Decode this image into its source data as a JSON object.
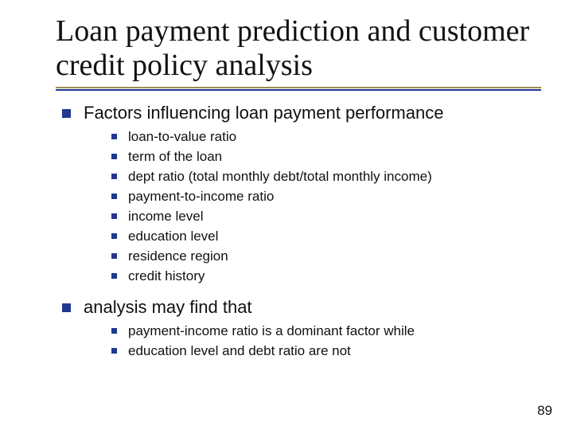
{
  "colors": {
    "bullet": "#203890",
    "rule_top": "#a08c52",
    "rule_bottom": "#203890",
    "text": "#111111",
    "background": "#ffffff"
  },
  "typography": {
    "title_font": "Times New Roman",
    "title_size_pt": 38,
    "body_font": "Verdana",
    "l1_size_pt": 22,
    "l2_size_pt": 17
  },
  "title": "Loan payment prediction and customer credit policy analysis",
  "sections": [
    {
      "heading": "Factors influencing loan payment performance",
      "items": [
        "loan-to-value ratio",
        "term of the loan",
        "dept ratio (total monthly debt/total monthly income)",
        "payment-to-income ratio",
        "income level",
        "education level",
        "residence region",
        "credit history"
      ]
    },
    {
      "heading": "analysis may find that",
      "items": [
        "payment-income ratio is a dominant factor while",
        "education level and debt ratio are not"
      ]
    }
  ],
  "page_number": "89"
}
